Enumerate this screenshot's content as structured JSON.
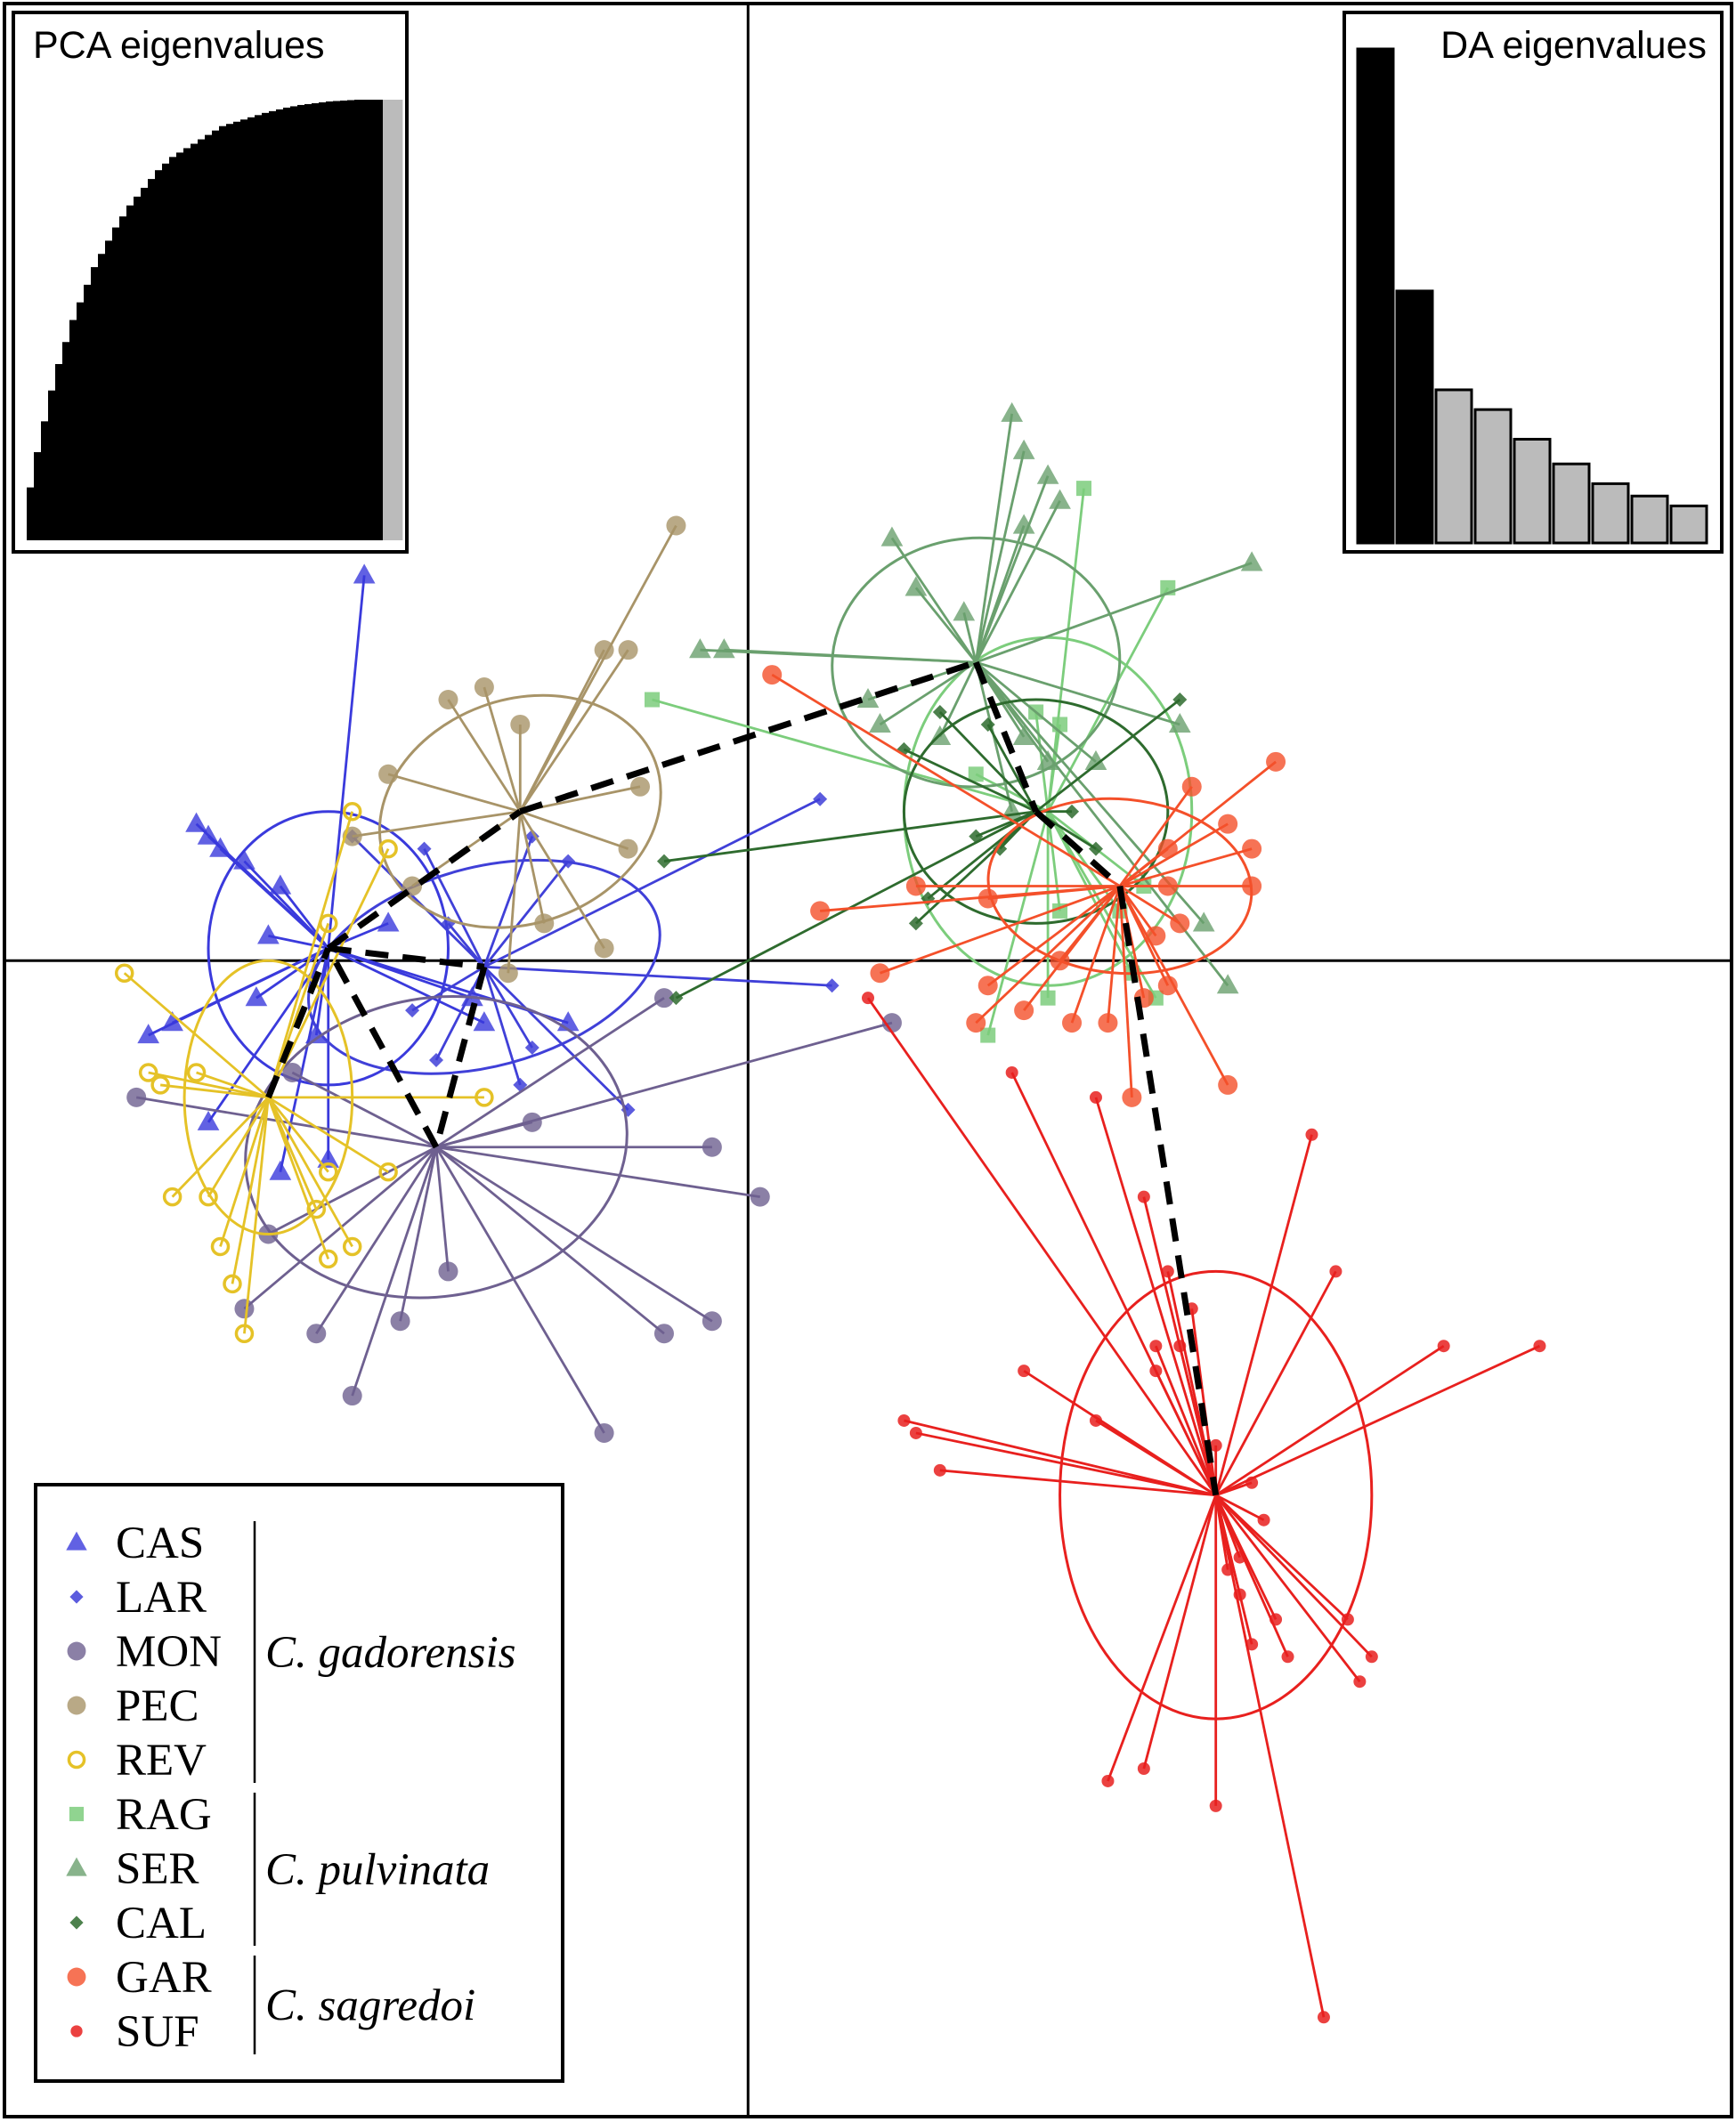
{
  "chart_data": {
    "type": "scatter",
    "title": "",
    "xlabel": "",
    "ylabel": "",
    "axes": "zero-cross lines, no tick labels",
    "xlim": [
      -6.2,
      8.2
    ],
    "ylim": [
      -9.3,
      7.7
    ],
    "legend_position": "bottom-left",
    "populations": [
      {
        "code": "CAS",
        "color": "#3a3adc",
        "marker": "triangle",
        "centroid": [
          -3.5,
          0.1
        ],
        "ellipse": {
          "rx": 1.0,
          "ry": 1.1,
          "angle": 0
        },
        "points": [
          [
            -4.6,
            1.1
          ],
          [
            -4.5,
            1.0
          ],
          [
            -4.4,
            0.9
          ],
          [
            -4.2,
            0.8
          ],
          [
            -4.8,
            -0.5
          ],
          [
            -5.0,
            -0.6
          ],
          [
            -4.1,
            -0.3
          ],
          [
            -3.9,
            0.6
          ],
          [
            -3.2,
            3.1
          ],
          [
            -3.0,
            0.3
          ],
          [
            -4.5,
            -1.3
          ],
          [
            -3.9,
            -1.7
          ],
          [
            -3.5,
            -1.6
          ],
          [
            -4.0,
            0.2
          ],
          [
            -2.2,
            -0.5
          ],
          [
            -3.6,
            -0.6
          ],
          [
            -2.3,
            -0.3
          ],
          [
            -1.5,
            -0.5
          ]
        ]
      },
      {
        "code": "LAR",
        "color": "#4040d8",
        "marker": "diamond",
        "centroid": [
          -2.2,
          -0.05
        ],
        "ellipse": {
          "rx": 1.5,
          "ry": 0.8,
          "angle": -15
        },
        "points": [
          [
            -3.3,
            1.0
          ],
          [
            -2.7,
            0.9
          ],
          [
            -1.8,
            1.0
          ],
          [
            -2.5,
            0.3
          ],
          [
            -2.6,
            -0.8
          ],
          [
            -1.9,
            -1.0
          ],
          [
            -1.5,
            0.8
          ],
          [
            0.6,
            1.3
          ],
          [
            0.7,
            -0.2
          ],
          [
            -1.0,
            -1.2
          ],
          [
            -1.8,
            -0.7
          ],
          [
            -2.8,
            -0.4
          ]
        ]
      },
      {
        "code": "MON",
        "color": "#6e6090",
        "marker": "circle",
        "centroid": [
          -2.6,
          -1.5
        ],
        "ellipse": {
          "rx": 1.6,
          "ry": 1.2,
          "angle": -10
        },
        "points": [
          [
            -5.1,
            -1.1
          ],
          [
            -4.2,
            -2.8
          ],
          [
            -3.6,
            -3.0
          ],
          [
            -3.3,
            -3.5
          ],
          [
            -2.9,
            -2.9
          ],
          [
            -2.5,
            -2.5
          ],
          [
            -1.2,
            -3.8
          ],
          [
            -0.7,
            -3.0
          ],
          [
            -0.3,
            -1.5
          ],
          [
            0.1,
            -1.9
          ],
          [
            -0.3,
            -2.9
          ],
          [
            1.2,
            -0.5
          ],
          [
            -1.8,
            -1.3
          ],
          [
            -0.7,
            -0.3
          ],
          [
            -4.0,
            -2.2
          ],
          [
            -3.8,
            -0.9
          ]
        ]
      },
      {
        "code": "PEC",
        "color": "#a89468",
        "marker": "circle",
        "centroid": [
          -1.9,
          1.2
        ],
        "ellipse": {
          "rx": 1.2,
          "ry": 0.9,
          "angle": -20
        },
        "points": [
          [
            -0.6,
            3.5
          ],
          [
            -2.2,
            2.2
          ],
          [
            -2.5,
            2.1
          ],
          [
            -1.9,
            1.9
          ],
          [
            -1.2,
            2.5
          ],
          [
            -1.0,
            2.5
          ],
          [
            -3.0,
            1.5
          ],
          [
            -3.3,
            1.0
          ],
          [
            -2.8,
            0.6
          ],
          [
            -1.7,
            0.3
          ],
          [
            -1.2,
            0.1
          ],
          [
            -0.9,
            1.4
          ],
          [
            -1.0,
            0.9
          ],
          [
            -2.0,
            -0.1
          ]
        ]
      },
      {
        "code": "REV",
        "color": "#e5c227",
        "marker": "open-circle",
        "centroid": [
          -4.0,
          -1.1
        ],
        "ellipse": {
          "rx": 0.7,
          "ry": 1.1,
          "angle": 0
        },
        "points": [
          [
            -5.2,
            -0.1
          ],
          [
            -5.0,
            -0.9
          ],
          [
            -4.9,
            -1.0
          ],
          [
            -4.6,
            -0.9
          ],
          [
            -4.8,
            -1.9
          ],
          [
            -4.5,
            -1.9
          ],
          [
            -4.4,
            -2.3
          ],
          [
            -4.3,
            -2.6
          ],
          [
            -4.2,
            -3.0
          ],
          [
            -3.6,
            -2.0
          ],
          [
            -3.5,
            -1.7
          ],
          [
            -3.3,
            -2.3
          ],
          [
            -3.5,
            -2.4
          ],
          [
            -3.0,
            -1.7
          ],
          [
            -3.0,
            0.9
          ],
          [
            -3.3,
            1.2
          ],
          [
            -2.2,
            -1.1
          ],
          [
            -3.5,
            0.3
          ]
        ]
      },
      {
        "code": "RAG",
        "color": "#7ccd7c",
        "marker": "square",
        "centroid": [
          2.5,
          1.2
        ],
        "ellipse": {
          "rx": 1.2,
          "ry": 1.4,
          "angle": 0
        },
        "points": [
          [
            2.8,
            3.8
          ],
          [
            3.5,
            3.0
          ],
          [
            -0.8,
            2.1
          ],
          [
            2.4,
            2.0
          ],
          [
            2.6,
            1.9
          ],
          [
            2.6,
            0.4
          ],
          [
            2.5,
            -0.3
          ],
          [
            3.1,
            0.4
          ],
          [
            3.2,
            -0.1
          ],
          [
            3.4,
            -0.3
          ],
          [
            2.0,
            -0.6
          ],
          [
            3.3,
            0.6
          ],
          [
            1.9,
            1.5
          ]
        ]
      },
      {
        "code": "SER",
        "color": "#6aa06e",
        "marker": "triangle",
        "centroid": [
          1.9,
          2.4
        ],
        "ellipse": {
          "rx": 1.2,
          "ry": 1.0,
          "angle": -5
        },
        "points": [
          [
            2.2,
            4.4
          ],
          [
            2.3,
            4.1
          ],
          [
            2.5,
            3.9
          ],
          [
            2.6,
            3.7
          ],
          [
            2.3,
            3.5
          ],
          [
            1.2,
            3.4
          ],
          [
            1.4,
            3.0
          ],
          [
            1.8,
            2.8
          ],
          [
            4.2,
            3.2
          ],
          [
            -0.4,
            2.5
          ],
          [
            -0.2,
            2.5
          ],
          [
            1.0,
            2.1
          ],
          [
            3.6,
            1.9
          ],
          [
            1.1,
            1.9
          ],
          [
            1.6,
            1.8
          ],
          [
            2.3,
            1.8
          ],
          [
            2.5,
            1.6
          ],
          [
            2.9,
            1.6
          ],
          [
            2.2,
            1.2
          ],
          [
            3.8,
            0.3
          ],
          [
            4.0,
            -0.2
          ]
        ]
      },
      {
        "code": "CAL",
        "color": "#2e6b2e",
        "marker": "diamond",
        "centroid": [
          2.4,
          1.2
        ],
        "ellipse": {
          "rx": 1.1,
          "ry": 0.9,
          "angle": 0
        },
        "points": [
          [
            3.6,
            2.1
          ],
          [
            1.6,
            2.0
          ],
          [
            2.0,
            1.9
          ],
          [
            1.3,
            1.7
          ],
          [
            1.9,
            1.0
          ],
          [
            2.1,
            0.9
          ],
          [
            1.5,
            0.5
          ],
          [
            2.9,
            0.9
          ],
          [
            -0.7,
            0.8
          ],
          [
            -0.6,
            -0.3
          ],
          [
            1.4,
            0.3
          ],
          [
            2.7,
            1.2
          ]
        ]
      },
      {
        "code": "GAR",
        "color": "#f4502a",
        "marker": "circle",
        "centroid": [
          3.1,
          0.6
        ],
        "ellipse": {
          "rx": 1.1,
          "ry": 0.7,
          "angle": 5
        },
        "points": [
          [
            0.2,
            2.3
          ],
          [
            4.4,
            1.6
          ],
          [
            3.7,
            1.4
          ],
          [
            4.0,
            1.1
          ],
          [
            4.2,
            0.9
          ],
          [
            4.2,
            0.6
          ],
          [
            3.5,
            0.9
          ],
          [
            3.5,
            0.6
          ],
          [
            3.6,
            0.3
          ],
          [
            3.4,
            0.2
          ],
          [
            0.6,
            0.4
          ],
          [
            1.4,
            0.6
          ],
          [
            2.0,
            0.5
          ],
          [
            2.6,
            0.0
          ],
          [
            2.0,
            -0.2
          ],
          [
            1.9,
            -0.5
          ],
          [
            2.3,
            -0.4
          ],
          [
            3.3,
            -0.3
          ],
          [
            3.5,
            -0.2
          ],
          [
            3.2,
            -1.1
          ],
          [
            4.0,
            -1.0
          ],
          [
            2.7,
            -0.5
          ],
          [
            3.0,
            -0.5
          ],
          [
            1.1,
            -0.1
          ]
        ]
      },
      {
        "code": "SUF",
        "color": "#e8201e",
        "marker": "small-circle",
        "centroid": [
          3.9,
          -4.3
        ],
        "ellipse": {
          "rx": 1.3,
          "ry": 1.8,
          "angle": 0
        },
        "points": [
          [
            1.0,
            -0.3
          ],
          [
            2.9,
            -1.1
          ],
          [
            4.7,
            -1.4
          ],
          [
            3.3,
            -1.9
          ],
          [
            3.5,
            -2.5
          ],
          [
            3.4,
            -3.1
          ],
          [
            4.9,
            -2.5
          ],
          [
            3.7,
            -2.8
          ],
          [
            3.4,
            -3.3
          ],
          [
            3.6,
            -3.1
          ],
          [
            5.8,
            -3.1
          ],
          [
            6.6,
            -3.1
          ],
          [
            2.3,
            -3.3
          ],
          [
            1.3,
            -3.7
          ],
          [
            1.4,
            -3.8
          ],
          [
            1.6,
            -4.1
          ],
          [
            2.9,
            -3.7
          ],
          [
            3.9,
            -3.9
          ],
          [
            4.2,
            -4.2
          ],
          [
            4.3,
            -4.5
          ],
          [
            4.1,
            -4.8
          ],
          [
            4.0,
            -4.9
          ],
          [
            4.1,
            -5.1
          ],
          [
            4.4,
            -5.3
          ],
          [
            4.5,
            -5.6
          ],
          [
            4.2,
            -5.5
          ],
          [
            5.0,
            -5.3
          ],
          [
            5.2,
            -5.6
          ],
          [
            5.1,
            -5.8
          ],
          [
            3.0,
            -6.6
          ],
          [
            3.3,
            -6.5
          ],
          [
            3.9,
            -6.8
          ],
          [
            4.8,
            -8.5
          ],
          [
            2.2,
            -0.9
          ]
        ]
      }
    ],
    "centroid_path": [
      "REV",
      "CAS",
      "LAR",
      "MON",
      "CAS",
      "PEC",
      "SER",
      "CAL",
      "GAR",
      "SUF"
    ],
    "legend": {
      "entries": [
        {
          "code": "CAS",
          "color": "#3a3adc",
          "marker": "triangle"
        },
        {
          "code": "LAR",
          "color": "#4040d8",
          "marker": "diamond"
        },
        {
          "code": "MON",
          "color": "#6e6090",
          "marker": "circle"
        },
        {
          "code": "PEC",
          "color": "#a89468",
          "marker": "circle"
        },
        {
          "code": "REV",
          "color": "#e5c227",
          "marker": "open-circle"
        },
        {
          "code": "RAG",
          "color": "#7ccd7c",
          "marker": "square"
        },
        {
          "code": "SER",
          "color": "#6aa06e",
          "marker": "triangle"
        },
        {
          "code": "CAL",
          "color": "#2e6b2e",
          "marker": "diamond"
        },
        {
          "code": "GAR",
          "color": "#f4502a",
          "marker": "circle"
        },
        {
          "code": "SUF",
          "color": "#e8201e",
          "marker": "small-circle"
        }
      ],
      "groups": [
        {
          "species": "C. gadorensis",
          "members": [
            "CAS",
            "LAR",
            "MON",
            "PEC",
            "REV"
          ]
        },
        {
          "species": "C. pulvinata",
          "members": [
            "RAG",
            "SER",
            "CAL"
          ]
        },
        {
          "species": "C. sagredoi",
          "members": [
            "GAR",
            "SUF"
          ]
        }
      ]
    },
    "insets": {
      "pca": {
        "title": "PCA eigenvalues",
        "type": "bar",
        "position": "top-left",
        "values": [
          0.12,
          0.2,
          0.27,
          0.34,
          0.4,
          0.45,
          0.5,
          0.54,
          0.58,
          0.62,
          0.65,
          0.68,
          0.71,
          0.735,
          0.76,
          0.78,
          0.8,
          0.82,
          0.84,
          0.855,
          0.87,
          0.88,
          0.89,
          0.9,
          0.91,
          0.92,
          0.93,
          0.94,
          0.945,
          0.95,
          0.955,
          0.96,
          0.965,
          0.97,
          0.974,
          0.978,
          0.982,
          0.985,
          0.988,
          0.99,
          0.992,
          0.994,
          0.996,
          0.997,
          0.998,
          0.999,
          1.0,
          1.0,
          1.0,
          1.0
        ],
        "retained_color": "#000000",
        "discarded_values": [
          1.0
        ],
        "discarded_color": "#bbbbbb"
      },
      "da": {
        "title": "DA eigenvalues",
        "type": "bar",
        "position": "top-right",
        "values": [
          1.0,
          0.51,
          0.31,
          0.27,
          0.21,
          0.16,
          0.12,
          0.095,
          0.075
        ],
        "retained": 2,
        "retained_color": "#000000",
        "discarded_color": "#bbbbbb"
      }
    }
  }
}
